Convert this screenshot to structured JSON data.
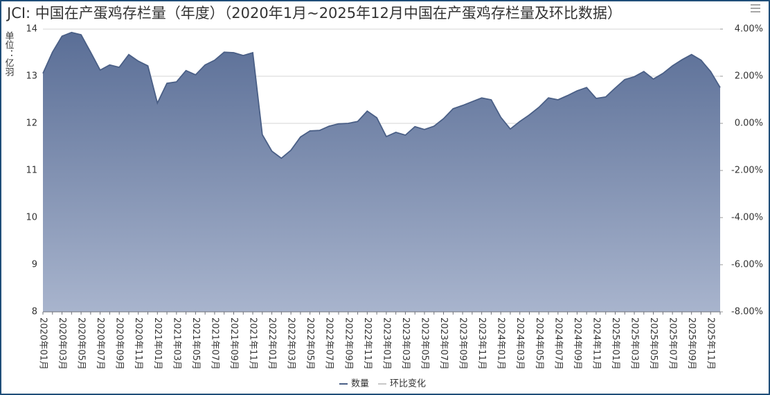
{
  "chart_data": {
    "type": "area",
    "title": "JCI: 中国在产蛋鸡存栏量（年度）（2020年1月~2025年12月中国在产蛋鸡存栏量及环比数据）",
    "y_axis_label": "单位：亿羽",
    "categories": [
      "2020年01月",
      null,
      "2020年03月",
      null,
      "2020年05月",
      null,
      "2020年07月",
      null,
      "2020年09月",
      null,
      "2020年11月",
      null,
      "2021年01月",
      null,
      "2021年03月",
      null,
      "2021年05月",
      null,
      "2021年07月",
      null,
      "2021年09月",
      null,
      "2021年11月",
      null,
      "2022年01月",
      null,
      "2022年03月",
      null,
      "2022年05月",
      null,
      "2022年07月",
      null,
      "2022年09月",
      null,
      "2022年11月",
      null,
      "2023年01月",
      null,
      "2023年03月",
      null,
      "2023年05月",
      null,
      "2023年07月",
      null,
      "2023年09月",
      null,
      "2023年11月",
      null,
      "2024年01月",
      null,
      "2024年03月",
      null,
      "2024年05月",
      null,
      "2024年07月",
      null,
      "2024年09月",
      null,
      "2024年11月",
      null,
      "2025年01月",
      null,
      "2025年03月",
      null,
      "2025年05月",
      null,
      "2025年07月",
      null,
      "2025年09月",
      null,
      "2025年11月",
      null
    ],
    "series": [
      {
        "name": "数量",
        "color": "#4a5f86",
        "values": [
          13.06,
          13.51,
          13.85,
          13.93,
          13.88,
          13.51,
          13.13,
          13.24,
          13.19,
          13.46,
          13.32,
          13.22,
          12.43,
          12.85,
          12.88,
          13.12,
          13.03,
          13.24,
          13.34,
          13.51,
          13.5,
          13.44,
          13.5,
          11.76,
          11.41,
          11.26,
          11.43,
          11.71,
          11.84,
          11.85,
          11.94,
          11.99,
          12.0,
          12.04,
          12.26,
          12.12,
          11.72,
          11.81,
          11.75,
          11.93,
          11.87,
          11.94,
          12.1,
          12.31,
          12.38,
          12.46,
          12.54,
          12.5,
          12.13,
          11.88,
          12.04,
          12.18,
          12.34,
          12.54,
          12.5,
          12.59,
          12.69,
          12.76,
          12.53,
          12.56,
          12.75,
          12.93,
          12.99,
          13.1,
          12.94,
          13.06,
          13.22,
          13.35,
          13.46,
          13.34,
          13.1,
          12.76
        ]
      },
      {
        "name": "环比变化",
        "color": "#c8c8c8",
        "axis": "y2",
        "hidden": true
      }
    ],
    "ylim": [
      8,
      14
    ],
    "yticks": [
      8,
      9,
      10,
      11,
      12,
      13,
      14
    ],
    "y2lim": [
      -8,
      4
    ],
    "y2ticks": [
      {
        "value": -8,
        "label": "-8.00%"
      },
      {
        "value": -6,
        "label": "-6.00%"
      },
      {
        "value": -4,
        "label": "-4.00%"
      },
      {
        "value": -2,
        "label": "-2.00%"
      },
      {
        "value": 0,
        "label": "0.00%"
      },
      {
        "value": 2,
        "label": "2.00%"
      },
      {
        "value": 4,
        "label": "4.00%"
      }
    ],
    "grid": true
  }
}
